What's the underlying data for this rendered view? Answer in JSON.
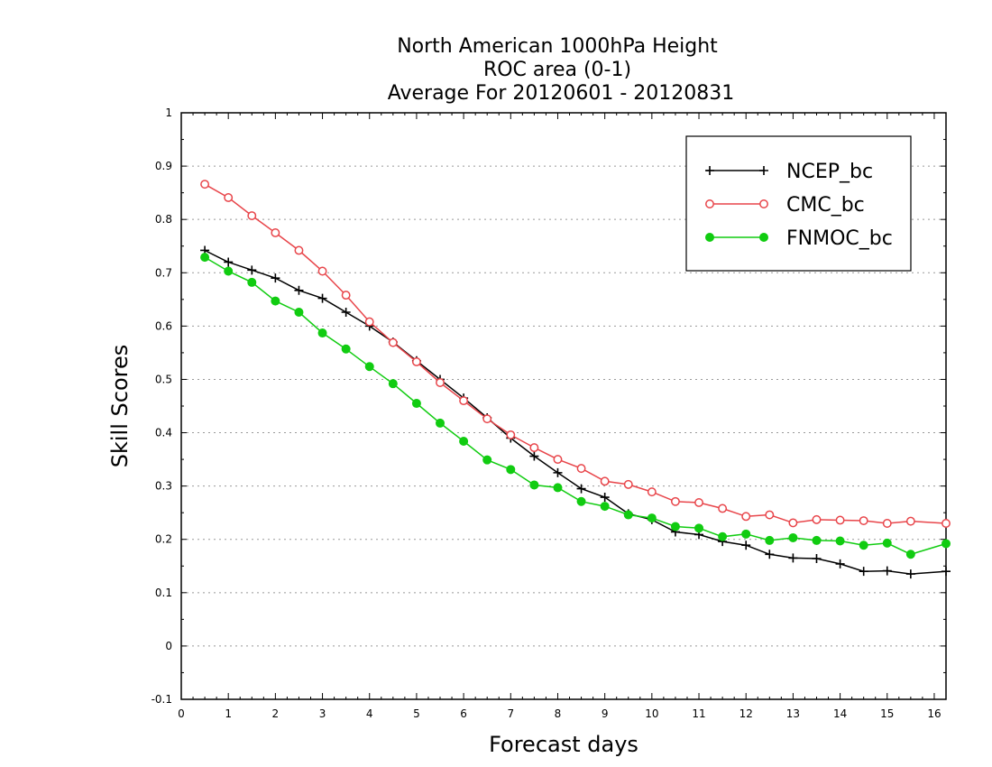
{
  "chart_data": {
    "type": "line",
    "title_lines": [
      "North American 1000hPa Height",
      "ROC area (0-1)",
      "Average For 20120601 - 20120831"
    ],
    "xlabel": "Forecast days",
    "ylabel": "Skill Scores",
    "xlim": [
      0,
      16.25
    ],
    "ylim": [
      -0.1,
      1.0
    ],
    "xticks": [
      0,
      1,
      2,
      3,
      4,
      5,
      6,
      7,
      8,
      9,
      10,
      11,
      12,
      13,
      14,
      15,
      16
    ],
    "yticks": [
      -0.1,
      0,
      0.1,
      0.2,
      0.3,
      0.4,
      0.5,
      0.6,
      0.7,
      0.8,
      0.9,
      1
    ],
    "ytick_labels": [
      "-0.1",
      "0",
      "0.1",
      "0.2",
      "0.3",
      "0.4",
      "0.5",
      "0.6",
      "0.7",
      "0.8",
      "0.9",
      "1"
    ],
    "grid": "horizontal dotted",
    "legend_position": "top-right",
    "x": [
      0.5,
      1,
      1.5,
      2,
      2.5,
      3,
      3.5,
      4,
      4.5,
      5,
      5.5,
      6,
      6.5,
      7,
      7.5,
      8,
      8.5,
      9,
      9.5,
      10,
      10.5,
      11,
      11.5,
      12,
      12.5,
      13,
      13.5,
      14,
      14.5,
      15,
      15.5,
      16.25
    ],
    "series": [
      {
        "name": "NCEP_bc",
        "color": "#000000",
        "marker": "plus",
        "values": [
          0.742,
          0.72,
          0.705,
          0.69,
          0.667,
          0.652,
          0.626,
          0.6,
          0.57,
          0.535,
          0.5,
          0.465,
          0.428,
          0.39,
          0.356,
          0.325,
          0.295,
          0.279,
          0.248,
          0.237,
          0.214,
          0.209,
          0.196,
          0.189,
          0.172,
          0.165,
          0.164,
          0.154,
          0.14,
          0.141,
          0.135,
          0.14
        ]
      },
      {
        "name": "CMC_bc",
        "color": "#e8454a",
        "marker": "open-circle",
        "values": [
          0.866,
          0.841,
          0.807,
          0.775,
          0.742,
          0.703,
          0.658,
          0.608,
          0.569,
          0.533,
          0.494,
          0.46,
          0.426,
          0.396,
          0.372,
          0.35,
          0.333,
          0.309,
          0.303,
          0.289,
          0.271,
          0.269,
          0.258,
          0.243,
          0.246,
          0.231,
          0.237,
          0.236,
          0.235,
          0.23,
          0.234,
          0.23
        ]
      },
      {
        "name": "FNMOC_bc",
        "color": "#11cc11",
        "marker": "filled-circle",
        "values": [
          0.729,
          0.703,
          0.682,
          0.647,
          0.626,
          0.587,
          0.557,
          0.524,
          0.492,
          0.455,
          0.418,
          0.384,
          0.349,
          0.331,
          0.302,
          0.297,
          0.271,
          0.262,
          0.246,
          0.24,
          0.224,
          0.221,
          0.205,
          0.21,
          0.198,
          0.203,
          0.198,
          0.197,
          0.189,
          0.193,
          0.172,
          0.192
        ]
      }
    ]
  }
}
